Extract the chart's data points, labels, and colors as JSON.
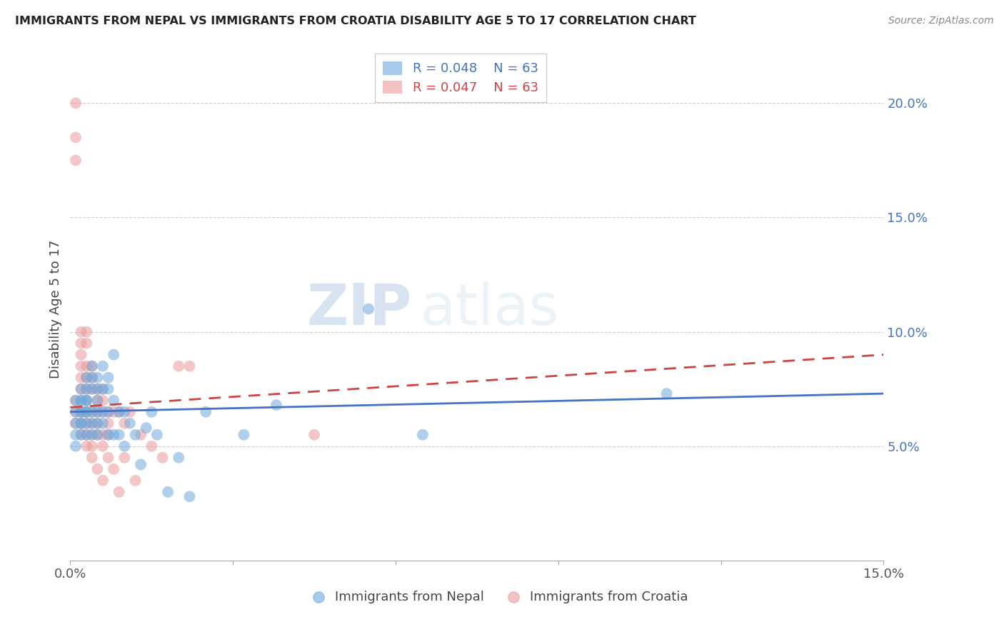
{
  "title": "IMMIGRANTS FROM NEPAL VS IMMIGRANTS FROM CROATIA DISABILITY AGE 5 TO 17 CORRELATION CHART",
  "source": "Source: ZipAtlas.com",
  "ylabel": "Disability Age 5 to 17",
  "xlim": [
    0.0,
    0.15
  ],
  "ylim": [
    0.0,
    0.22
  ],
  "y_ticks_right": [
    0.05,
    0.1,
    0.15,
    0.2
  ],
  "y_tick_labels_right": [
    "5.0%",
    "10.0%",
    "15.0%",
    "20.0%"
  ],
  "nepal_R": 0.048,
  "nepal_N": 63,
  "croatia_R": 0.047,
  "croatia_N": 63,
  "nepal_color": "#6fa8dc",
  "croatia_color": "#ea9999",
  "nepal_line_color": "#4472c4",
  "croatia_line_color": "#cc4444",
  "legend_nepal_label": "Immigrants from Nepal",
  "legend_croatia_label": "Immigrants from Croatia",
  "watermark_zip": "ZIP",
  "watermark_atlas": "atlas",
  "nepal_scatter_x": [
    0.001,
    0.001,
    0.001,
    0.001,
    0.001,
    0.002,
    0.002,
    0.002,
    0.002,
    0.002,
    0.002,
    0.002,
    0.002,
    0.003,
    0.003,
    0.003,
    0.003,
    0.003,
    0.003,
    0.003,
    0.003,
    0.004,
    0.004,
    0.004,
    0.004,
    0.004,
    0.004,
    0.005,
    0.005,
    0.005,
    0.005,
    0.005,
    0.005,
    0.006,
    0.006,
    0.006,
    0.006,
    0.007,
    0.007,
    0.007,
    0.007,
    0.008,
    0.008,
    0.008,
    0.009,
    0.009,
    0.01,
    0.01,
    0.011,
    0.012,
    0.013,
    0.014,
    0.015,
    0.016,
    0.018,
    0.02,
    0.022,
    0.025,
    0.032,
    0.038,
    0.055,
    0.065,
    0.11
  ],
  "nepal_scatter_y": [
    0.065,
    0.07,
    0.06,
    0.055,
    0.05,
    0.075,
    0.07,
    0.065,
    0.06,
    0.055,
    0.065,
    0.06,
    0.07,
    0.08,
    0.075,
    0.07,
    0.065,
    0.06,
    0.055,
    0.065,
    0.07,
    0.085,
    0.08,
    0.075,
    0.065,
    0.06,
    0.055,
    0.08,
    0.075,
    0.07,
    0.065,
    0.06,
    0.055,
    0.085,
    0.075,
    0.065,
    0.06,
    0.08,
    0.075,
    0.065,
    0.055,
    0.09,
    0.07,
    0.055,
    0.065,
    0.055,
    0.065,
    0.05,
    0.06,
    0.055,
    0.042,
    0.058,
    0.065,
    0.055,
    0.03,
    0.045,
    0.028,
    0.065,
    0.055,
    0.068,
    0.11,
    0.055,
    0.073
  ],
  "croatia_scatter_x": [
    0.001,
    0.001,
    0.001,
    0.001,
    0.001,
    0.001,
    0.002,
    0.002,
    0.002,
    0.002,
    0.002,
    0.002,
    0.002,
    0.002,
    0.002,
    0.003,
    0.003,
    0.003,
    0.003,
    0.003,
    0.003,
    0.003,
    0.003,
    0.003,
    0.003,
    0.004,
    0.004,
    0.004,
    0.004,
    0.004,
    0.004,
    0.004,
    0.004,
    0.005,
    0.005,
    0.005,
    0.005,
    0.005,
    0.005,
    0.006,
    0.006,
    0.006,
    0.006,
    0.006,
    0.006,
    0.007,
    0.007,
    0.007,
    0.007,
    0.008,
    0.008,
    0.009,
    0.009,
    0.01,
    0.01,
    0.011,
    0.012,
    0.013,
    0.015,
    0.017,
    0.02,
    0.022,
    0.045
  ],
  "croatia_scatter_y": [
    0.2,
    0.185,
    0.175,
    0.07,
    0.065,
    0.06,
    0.1,
    0.095,
    0.09,
    0.085,
    0.08,
    0.075,
    0.065,
    0.06,
    0.055,
    0.1,
    0.095,
    0.085,
    0.08,
    0.075,
    0.07,
    0.065,
    0.06,
    0.055,
    0.05,
    0.085,
    0.08,
    0.075,
    0.065,
    0.06,
    0.055,
    0.05,
    0.045,
    0.075,
    0.07,
    0.065,
    0.06,
    0.055,
    0.04,
    0.075,
    0.07,
    0.065,
    0.055,
    0.05,
    0.035,
    0.065,
    0.06,
    0.055,
    0.045,
    0.065,
    0.04,
    0.065,
    0.03,
    0.06,
    0.045,
    0.065,
    0.035,
    0.055,
    0.05,
    0.045,
    0.085,
    0.085,
    0.055
  ],
  "nepal_trend": [
    0.065,
    0.073
  ],
  "croatia_trend": [
    0.067,
    0.09
  ]
}
